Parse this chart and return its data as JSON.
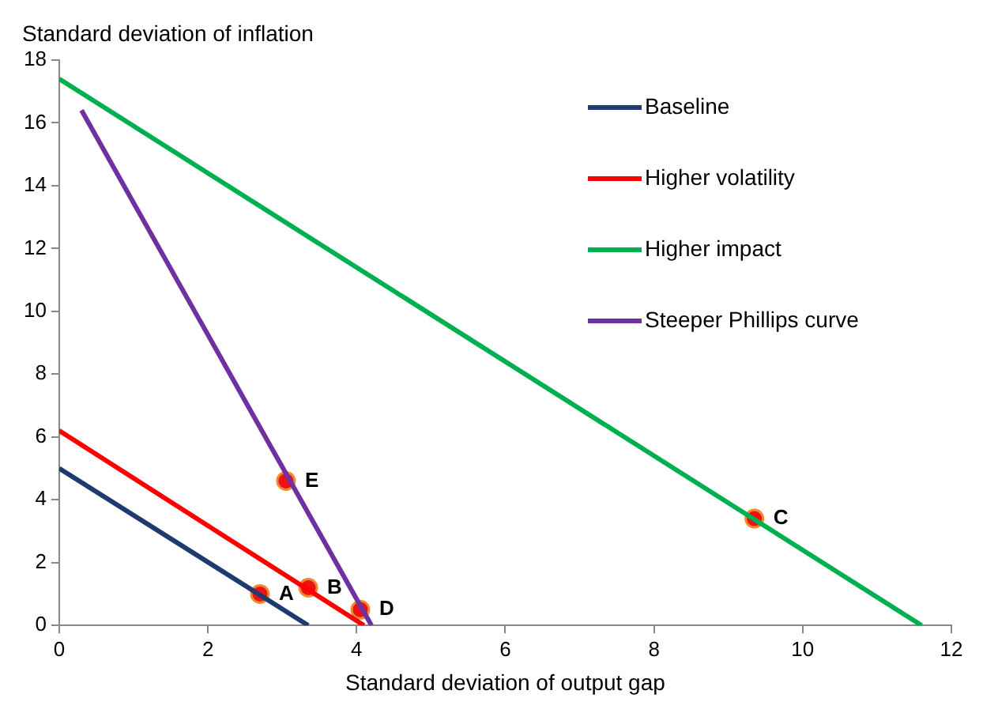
{
  "chart_data": {
    "type": "line",
    "xlabel": "Standard deviation of output gap",
    "ylabel": "Standard deviation of inflation",
    "xlim": [
      0,
      12
    ],
    "xticks": [
      0,
      2,
      4,
      6,
      8,
      10,
      12
    ],
    "ylim": [
      0,
      18
    ],
    "yticks": [
      0,
      2,
      4,
      6,
      8,
      10,
      12,
      14,
      16,
      18
    ],
    "grid": false,
    "legend": "top right",
    "marker": "none",
    "line_style": "solid",
    "series": [
      {
        "name": "Baseline",
        "color": "#1f3a6e",
        "type": "line",
        "x": [
          0,
          3.35
        ],
        "values": [
          5,
          0
        ]
      },
      {
        "name": "Higher volatility",
        "color": "#ff0000",
        "type": "line",
        "x": [
          0,
          4.1
        ],
        "values": [
          6.2,
          0
        ]
      },
      {
        "name": "Higher impact",
        "color": "#00b050",
        "type": "line",
        "x": [
          0,
          11.6
        ],
        "values": [
          17.4,
          0
        ]
      },
      {
        "name": "Steeper Phillips curve",
        "color": "#7030a0",
        "type": "line",
        "x": [
          0.3,
          4.2
        ],
        "values": [
          16.4,
          0
        ]
      },
      {
        "color": "#ee1111",
        "type": "scatter",
        "marker": "circle",
        "x": [
          2.7,
          3.35,
          9.35,
          4.05,
          3.05
        ],
        "values": [
          1.0,
          1.2,
          3.4,
          0.5,
          4.6
        ]
      }
    ],
    "annotations": [
      {
        "text": "A",
        "x": 2.7,
        "y": 1.0
      },
      {
        "text": "B",
        "x": 3.35,
        "y": 1.2
      },
      {
        "text": "C",
        "x": 9.35,
        "y": 3.4
      },
      {
        "text": "D",
        "x": 4.05,
        "y": 0.5
      },
      {
        "text": "E",
        "x": 3.05,
        "y": 4.6
      }
    ]
  }
}
